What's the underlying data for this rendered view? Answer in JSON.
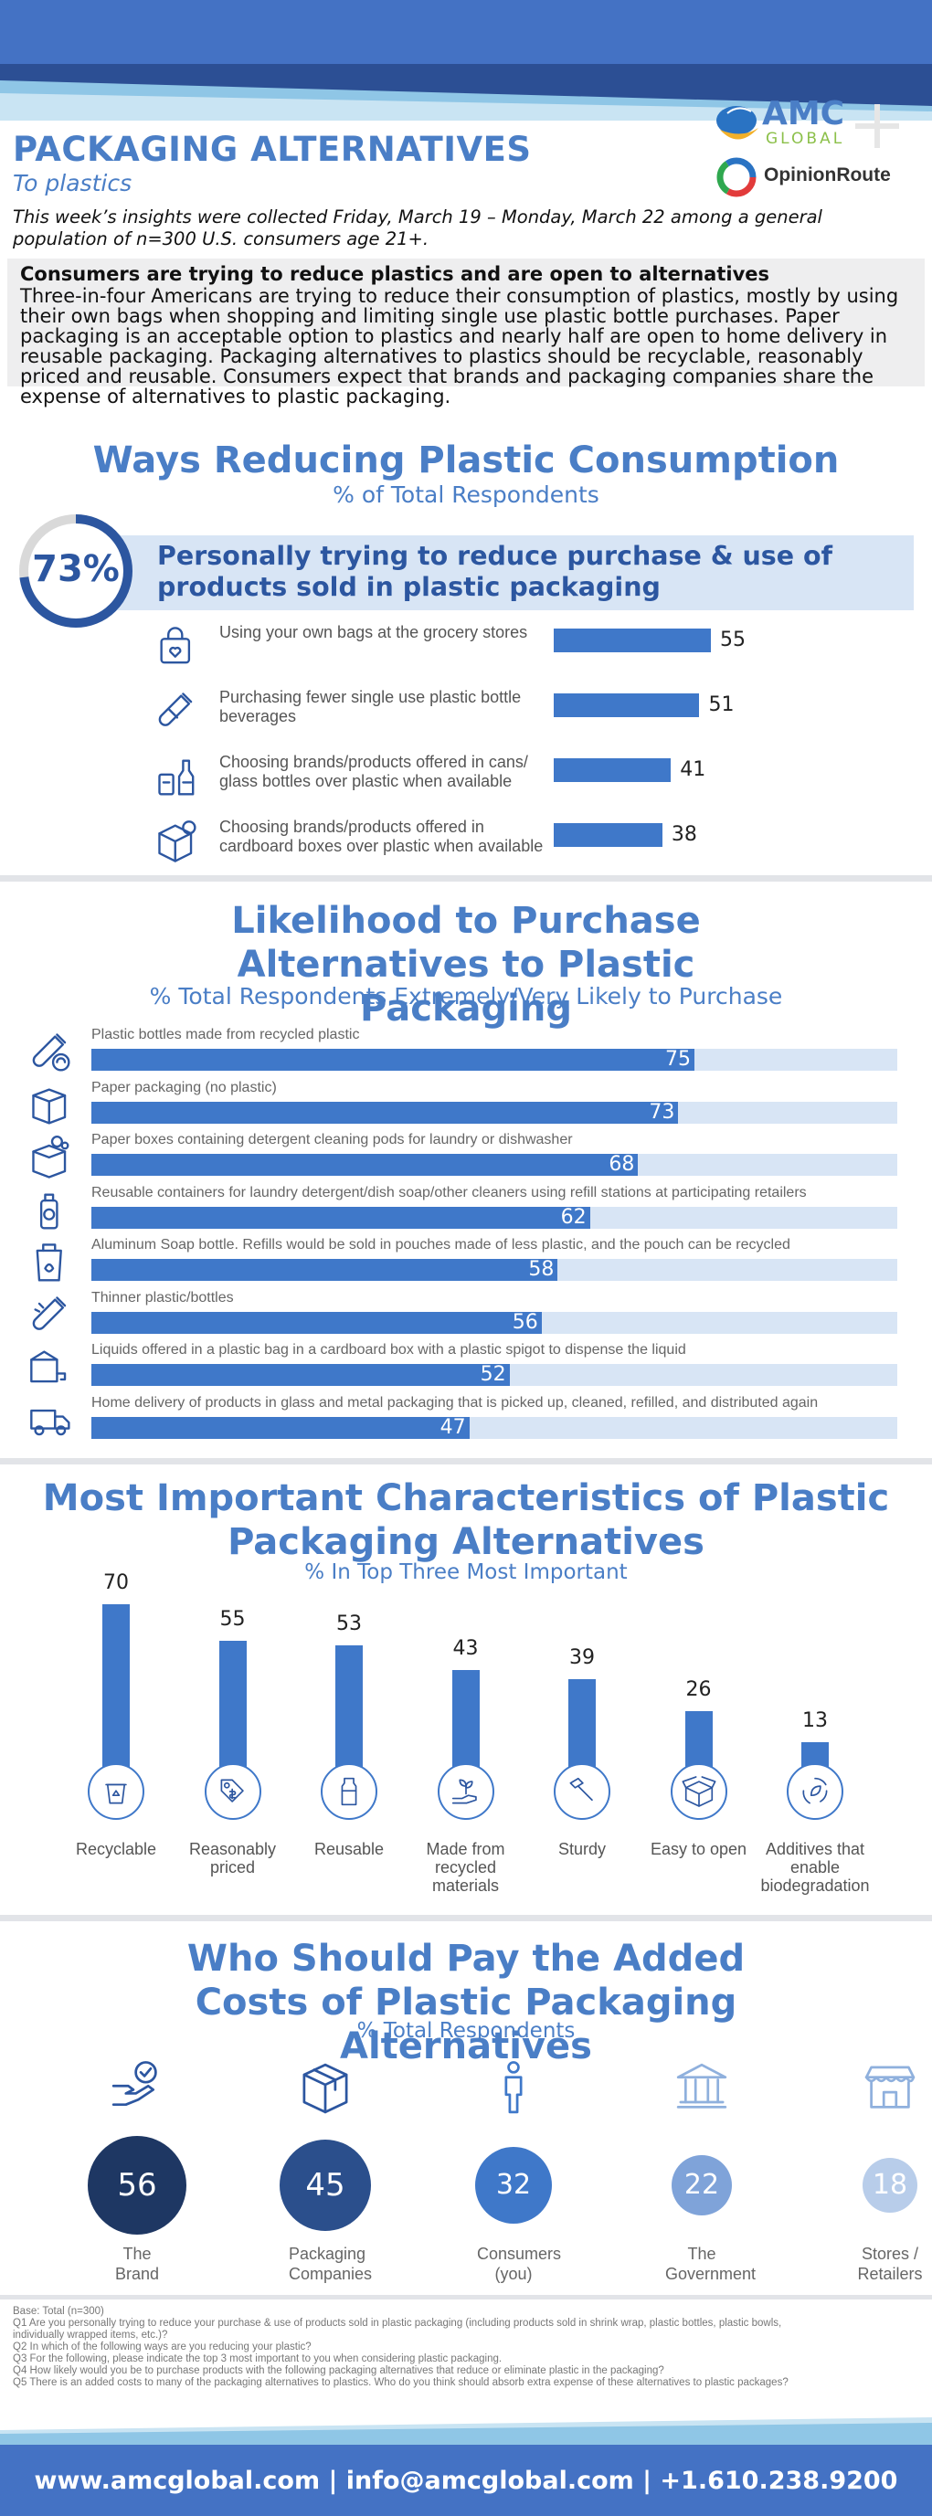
{
  "header": {
    "title": "PACKAGING ALTERNATIVES",
    "subtitle": "To plastics",
    "intro": "This week’s insights were collected Friday, March 19 – Monday, March 22 among a general population of n=300 U.S. consumers age 21+.",
    "logo1_line1": "AMC",
    "logo1_line2": "GLOBAL",
    "logo2": "OpinionRoute"
  },
  "summary": {
    "heading": "Consumers are trying to reduce plastics and are open to alternatives",
    "body": "Three-in-four Americans are trying to reduce their consumption of plastics, mostly by using their own bags when shopping and limiting single use plastic bottle purchases. Paper packaging is an acceptable option to plastics and nearly half are open to home delivery in reusable packaging. Packaging alternatives to plastics should be recyclable, reasonably priced and reusable. Consumers expect that brands and packaging companies share the expense of alternatives to plastic packaging."
  },
  "section1": {
    "title": "Ways Reducing Plastic Consumption",
    "subtitle": "% of Total Respondents",
    "big_pct": "73%",
    "big_value": 73,
    "big_text": "Personally trying to reduce purchase & use of products sold in plastic packaging",
    "items": [
      {
        "label": "Using your own bags at the grocery stores",
        "value": 55,
        "icon": "shopping-bag-icon"
      },
      {
        "label": "Purchasing fewer single use plastic bottle beverages",
        "value": 51,
        "icon": "plastic-bottle-icon"
      },
      {
        "label": "Choosing brands/products offered in cans/ glass bottles over plastic when available",
        "value": 41,
        "icon": "cans-bottles-icon"
      },
      {
        "label": "Choosing brands/products offered in cardboard boxes over plastic when available",
        "value": 38,
        "icon": "cardboard-box-icon"
      }
    ]
  },
  "section2": {
    "title": "Likelihood to Purchase Alternatives to Plastic Packaging",
    "subtitle": "% Total Respondents Extremely/Very Likely to Purchase",
    "items": [
      {
        "label": "Plastic bottles made from recycled plastic",
        "value": 75,
        "icon": "recycled-bottle-icon"
      },
      {
        "label": "Paper packaging (no plastic)",
        "value": 73,
        "icon": "paper-box-icon"
      },
      {
        "label": "Paper boxes containing detergent cleaning pods for laundry or dishwasher",
        "value": 68,
        "icon": "detergent-box-icon"
      },
      {
        "label": "Reusable containers for laundry detergent/dish soap/other cleaners using refill stations at participating retailers",
        "value": 62,
        "icon": "refill-container-icon"
      },
      {
        "label": "Aluminum Soap bottle. Refills would be sold in pouches made of less plastic, and the pouch can be recycled",
        "value": 58,
        "icon": "soap-pouch-icon"
      },
      {
        "label": "Thinner plastic/bottles",
        "value": 56,
        "icon": "thin-bottle-icon"
      },
      {
        "label": "Liquids offered in a plastic bag in a cardboard box with a plastic spigot to dispense the liquid",
        "value": 52,
        "icon": "bag-in-box-icon"
      },
      {
        "label": "Home delivery of products in glass and metal packaging that is picked up, cleaned, refilled, and distributed again",
        "value": 47,
        "icon": "delivery-truck-icon"
      }
    ]
  },
  "section3": {
    "title": "Most Important Characteristics of Plastic Packaging Alternatives",
    "subtitle": "% In Top Three Most Important",
    "items": [
      {
        "label": "Recyclable",
        "value": 70,
        "icon": "recycle-bin-icon"
      },
      {
        "label": "Reasonably priced",
        "value": 55,
        "icon": "price-tag-icon"
      },
      {
        "label": "Reusable",
        "value": 53,
        "icon": "reusable-bottle-icon"
      },
      {
        "label": "Made from recycled materials",
        "value": 43,
        "icon": "sprout-hand-icon"
      },
      {
        "label": "Sturdy",
        "value": 39,
        "icon": "hammer-icon"
      },
      {
        "label": "Easy to open",
        "value": 26,
        "icon": "open-box-icon"
      },
      {
        "label": "Additives that enable biodegradation",
        "value": 13,
        "icon": "leaf-recycle-icon"
      }
    ]
  },
  "section4": {
    "title": "Who Should Pay the Added Costs of Plastic Packaging Alternatives",
    "subtitle": "% Total Respondents",
    "items": [
      {
        "label": "The Brand",
        "value": 56,
        "color": "#1e3763",
        "icon": "hand-badge-icon"
      },
      {
        "label": "Packaging Companies",
        "value": 45,
        "color": "#2b4f8c",
        "icon": "package-icon"
      },
      {
        "label": "Consumers (you)",
        "value": 32,
        "color": "#3f78c9",
        "icon": "person-icon"
      },
      {
        "label": "The Government",
        "value": 22,
        "color": "#7fa3d9",
        "icon": "government-building-icon"
      },
      {
        "label": "Stores / Retailers",
        "value": 18,
        "color": "#b8cdea",
        "icon": "storefront-icon"
      }
    ]
  },
  "footnotes": {
    "base": "Base: Total (n=300)",
    "q1": "Q1 Are you personally trying to reduce your purchase & use of products sold in plastic packaging (including products sold in shrink wrap, plastic bottles, plastic bowls, individually wrapped items, etc.)?",
    "q2": "Q2 In which of the following ways are you reducing your plastic?",
    "q3": "Q3 For the following, please indicate the top 3 most important to you when considering plastic packaging.",
    "q4": "Q4 How likely would you be to purchase products with the following packaging alternatives that reduce or eliminate plastic in the packaging?",
    "q5": "Q5 There is an added costs to many of the packaging alternatives to plastics. Who do you think should absorb extra expense of these alternatives to plastic packages?"
  },
  "footer": {
    "contact": "www.amcglobal.com | info@amcglobal.com | +1.610.238.9200"
  },
  "colors": {
    "accent": "#4a7ec6",
    "bar": "#3f78c9",
    "track": "#d8e5f5",
    "footer": "#4472c4"
  }
}
